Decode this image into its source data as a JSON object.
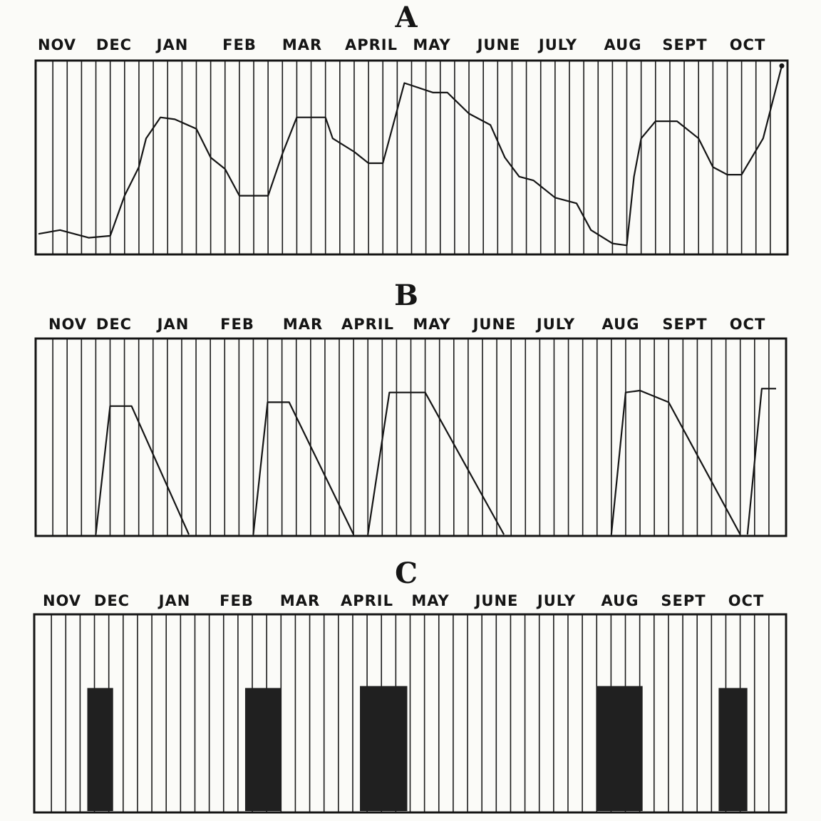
{
  "months": [
    "NOV",
    "DEC",
    "JAN",
    "FEB",
    "MAR",
    "APRIL",
    "MAY",
    "JUNE",
    "JULY",
    "AUG",
    "SEPT",
    "OCT"
  ],
  "colors": {
    "ink": "#151515",
    "paper": "#fbfbf8",
    "block": "#202020"
  },
  "chart_data": [
    {
      "type": "line",
      "title": "A",
      "categories": [
        "NOV",
        "DEC",
        "JAN",
        "FEB",
        "MAR",
        "APRIL",
        "MAY",
        "JUNE",
        "JULY",
        "AUG",
        "SEPT",
        "OCT"
      ],
      "grid": true,
      "ylim": [
        0,
        100
      ],
      "note": "x = weeks from start of NOV, 52 weekly columns; y = relative level (unitless)",
      "series": [
        {
          "x": [
            0,
            1.5,
            3.5,
            5,
            6,
            7,
            7.5,
            8.5,
            9.5,
            11,
            12,
            13,
            14,
            15,
            16,
            17,
            18,
            20,
            20.5,
            22,
            23,
            24,
            25.5,
            27.5,
            28.5,
            30,
            31.5,
            32.5,
            33.5,
            34.5,
            36,
            37.5,
            38.5,
            40,
            41,
            41.5,
            42,
            43,
            44.5,
            46,
            47,
            48,
            49,
            50.5,
            51.8
          ],
          "values": [
            10,
            12,
            8,
            9,
            30,
            45,
            60,
            71,
            70,
            65,
            50,
            44,
            30,
            30,
            30,
            52,
            71,
            71,
            60,
            53,
            47,
            47,
            89,
            84,
            84,
            73,
            67,
            50,
            40,
            38,
            29,
            26,
            12,
            5,
            4,
            40,
            60,
            69,
            69,
            60,
            45,
            41,
            41,
            60,
            98
          ]
        }
      ]
    },
    {
      "type": "line",
      "title": "B",
      "categories": [
        "NOV",
        "DEC",
        "JAN",
        "FEB",
        "MAR",
        "APRIL",
        "MAY",
        "JUNE",
        "JULY",
        "AUG",
        "SEPT",
        "OCT"
      ],
      "grid": true,
      "ylim": [
        0,
        100
      ],
      "note": "x = weeks from start of NOV; separate triangular pulses",
      "series": [
        {
          "x": [
            4,
            5,
            6.5,
            10.5
          ],
          "values": [
            0,
            66,
            66,
            0
          ]
        },
        {
          "x": [
            15,
            16,
            17.5,
            22
          ],
          "values": [
            0,
            68,
            68,
            0
          ]
        },
        {
          "x": [
            23,
            24.5,
            27,
            32.5
          ],
          "values": [
            0,
            73,
            73,
            0
          ]
        },
        {
          "x": [
            40,
            41,
            42,
            44,
            49
          ],
          "values": [
            0,
            73,
            74,
            68,
            0
          ]
        },
        {
          "x": [
            49.5,
            50.5,
            51.5
          ],
          "values": [
            0,
            75,
            75
          ]
        }
      ]
    },
    {
      "type": "bar",
      "title": "C",
      "categories": [
        "NOV",
        "DEC",
        "JAN",
        "FEB",
        "MAR",
        "APRIL",
        "MAY",
        "JUNE",
        "JULY",
        "AUG",
        "SEPT",
        "OCT"
      ],
      "grid": true,
      "ylim": [
        0,
        100
      ],
      "note": "x = week span [start, end] from start of NOV; value = bar height",
      "bars": [
        {
          "x": [
            3.5,
            5.3
          ],
          "value": 63
        },
        {
          "x": [
            14.5,
            17
          ],
          "value": 63
        },
        {
          "x": [
            22.5,
            25.8
          ],
          "value": 64
        },
        {
          "x": [
            39,
            42.2
          ],
          "value": 64
        },
        {
          "x": [
            47.5,
            49.5
          ],
          "value": 63
        }
      ]
    }
  ]
}
